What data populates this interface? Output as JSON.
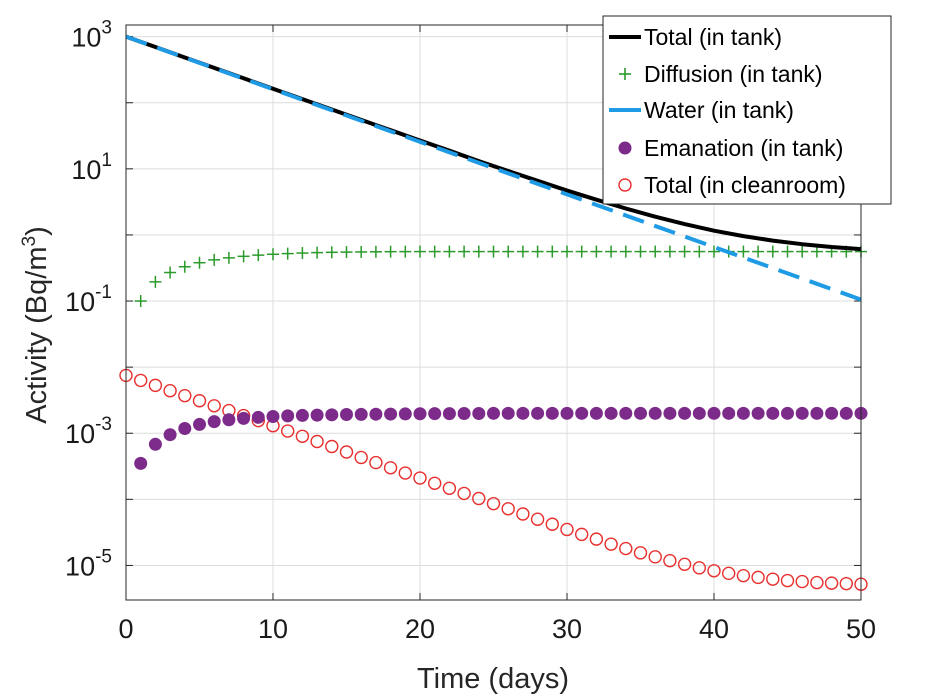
{
  "chart_data": {
    "type": "line",
    "title": "",
    "xlabel": "Time (days)",
    "ylabel": "Activity (Bq/m",
    "ylabel_sup": "3",
    "ylabel_close": ")",
    "xlim": [
      0,
      50
    ],
    "ylim": [
      3e-06,
      1500
    ],
    "yscale": "log",
    "grid": true,
    "legend_position": "top-right",
    "x_ticks": [
      {
        "value": 0,
        "label": "0"
      },
      {
        "value": 10,
        "label": "10"
      },
      {
        "value": 20,
        "label": "20"
      },
      {
        "value": 30,
        "label": "30"
      },
      {
        "value": 40,
        "label": "40"
      },
      {
        "value": 50,
        "label": "50"
      }
    ],
    "y_ticks": [
      {
        "value": 1000,
        "base": "10",
        "exp": "3"
      },
      {
        "value": 10,
        "base": "10",
        "exp": "1"
      },
      {
        "value": 0.1,
        "base": "10",
        "exp": "-1"
      },
      {
        "value": 0.001,
        "base": "10",
        "exp": "-3"
      },
      {
        "value": 1e-05,
        "base": "10",
        "exp": "-5"
      }
    ],
    "series": [
      {
        "name": "Total (in tank)",
        "style": "line",
        "color": "#000000",
        "x": [
          0,
          2,
          4,
          6,
          8,
          10,
          12,
          14,
          16,
          18,
          20,
          22,
          24,
          26,
          28,
          30,
          32,
          34,
          36,
          38,
          40,
          42,
          44,
          46,
          48,
          50
        ],
        "values": [
          1000,
          696,
          484,
          337,
          234,
          163,
          113.6,
          79,
          55,
          38.4,
          26.8,
          18.8,
          13.1,
          9.29,
          6.59,
          4.71,
          3.41,
          2.51,
          1.89,
          1.46,
          1.16,
          0.959,
          0.82,
          0.724,
          0.657,
          0.61
        ]
      },
      {
        "name": "Diffusion (in tank)",
        "style": "plus",
        "color": "#2a9a2a",
        "x": [
          1,
          2,
          3,
          4,
          5,
          6,
          7,
          8,
          9,
          10,
          11,
          12,
          13,
          14,
          15,
          16,
          17,
          18,
          19,
          20,
          21,
          22,
          23,
          24,
          25,
          26,
          27,
          28,
          29,
          30,
          31,
          32,
          33,
          34,
          35,
          36,
          37,
          38,
          39,
          40,
          41,
          42,
          43,
          44,
          45,
          46,
          47,
          48,
          49,
          50
        ],
        "values": [
          0.1,
          0.195,
          0.27,
          0.33,
          0.38,
          0.42,
          0.45,
          0.475,
          0.495,
          0.51,
          0.522,
          0.532,
          0.54,
          0.546,
          0.55,
          0.553,
          0.556,
          0.558,
          0.559,
          0.56,
          0.56,
          0.56,
          0.56,
          0.56,
          0.56,
          0.56,
          0.56,
          0.56,
          0.56,
          0.56,
          0.56,
          0.56,
          0.56,
          0.56,
          0.56,
          0.56,
          0.56,
          0.56,
          0.56,
          0.56,
          0.56,
          0.56,
          0.56,
          0.56,
          0.56,
          0.56,
          0.56,
          0.56,
          0.56,
          0.56
        ]
      },
      {
        "name": "Water (in tank)",
        "style": "dashed",
        "color": "#1e9be4",
        "x": [
          0,
          50
        ],
        "values": [
          1000,
          0.105
        ]
      },
      {
        "name": "Emanation (in tank)",
        "style": "filled-circle",
        "color": "#7d2b8b",
        "x": [
          1,
          2,
          3,
          4,
          5,
          6,
          7,
          8,
          9,
          10,
          11,
          12,
          13,
          14,
          15,
          16,
          17,
          18,
          19,
          20,
          21,
          22,
          23,
          24,
          25,
          26,
          27,
          28,
          29,
          30,
          31,
          32,
          33,
          34,
          35,
          36,
          37,
          38,
          39,
          40,
          41,
          42,
          43,
          44,
          45,
          46,
          47,
          48,
          49,
          50
        ],
        "values": [
          0.00035,
          0.00068,
          0.00095,
          0.00118,
          0.00136,
          0.0015,
          0.0016,
          0.00168,
          0.00174,
          0.00179,
          0.00183,
          0.00186,
          0.00188,
          0.0019,
          0.00192,
          0.00193,
          0.00194,
          0.00195,
          0.00196,
          0.00197,
          0.00198,
          0.00198,
          0.00199,
          0.00199,
          0.002,
          0.002,
          0.002,
          0.002,
          0.002,
          0.002,
          0.002,
          0.002,
          0.002,
          0.002,
          0.002,
          0.002,
          0.002,
          0.002,
          0.002,
          0.002,
          0.002,
          0.002,
          0.002,
          0.002,
          0.002,
          0.002,
          0.002,
          0.002,
          0.002,
          0.002
        ]
      },
      {
        "name": "Total (in cleanroom)",
        "style": "open-circle",
        "color": "#e8302e",
        "x": [
          0,
          1,
          2,
          3,
          4,
          5,
          6,
          7,
          8,
          9,
          10,
          11,
          12,
          13,
          14,
          15,
          16,
          17,
          18,
          19,
          20,
          21,
          22,
          23,
          24,
          25,
          26,
          27,
          28,
          29,
          30,
          31,
          32,
          33,
          34,
          35,
          36,
          37,
          38,
          39,
          40,
          41,
          42,
          43,
          44,
          45,
          46,
          47,
          48,
          49,
          50
        ],
        "values": [
          0.0075,
          0.0063,
          0.0053,
          0.0044,
          0.0037,
          0.0031,
          0.0026,
          0.0022,
          0.00185,
          0.00155,
          0.0013,
          0.00108,
          0.0009,
          0.00075,
          0.00063,
          0.00052,
          0.00043,
          0.00036,
          0.0003,
          0.00025,
          0.00021,
          0.000175,
          0.000147,
          0.000123,
          0.000103,
          8.6e-05,
          7.2e-05,
          6e-05,
          5e-05,
          4.2e-05,
          3.5e-05,
          2.95e-05,
          2.5e-05,
          2.1e-05,
          1.8e-05,
          1.55e-05,
          1.35e-05,
          1.18e-05,
          1.04e-05,
          9.2e-06,
          8.3e-06,
          7.6e-06,
          7e-06,
          6.6e-06,
          6.2e-06,
          5.9e-06,
          5.7e-06,
          5.5e-06,
          5.4e-06,
          5.3e-06,
          5.2e-06
        ]
      }
    ]
  }
}
